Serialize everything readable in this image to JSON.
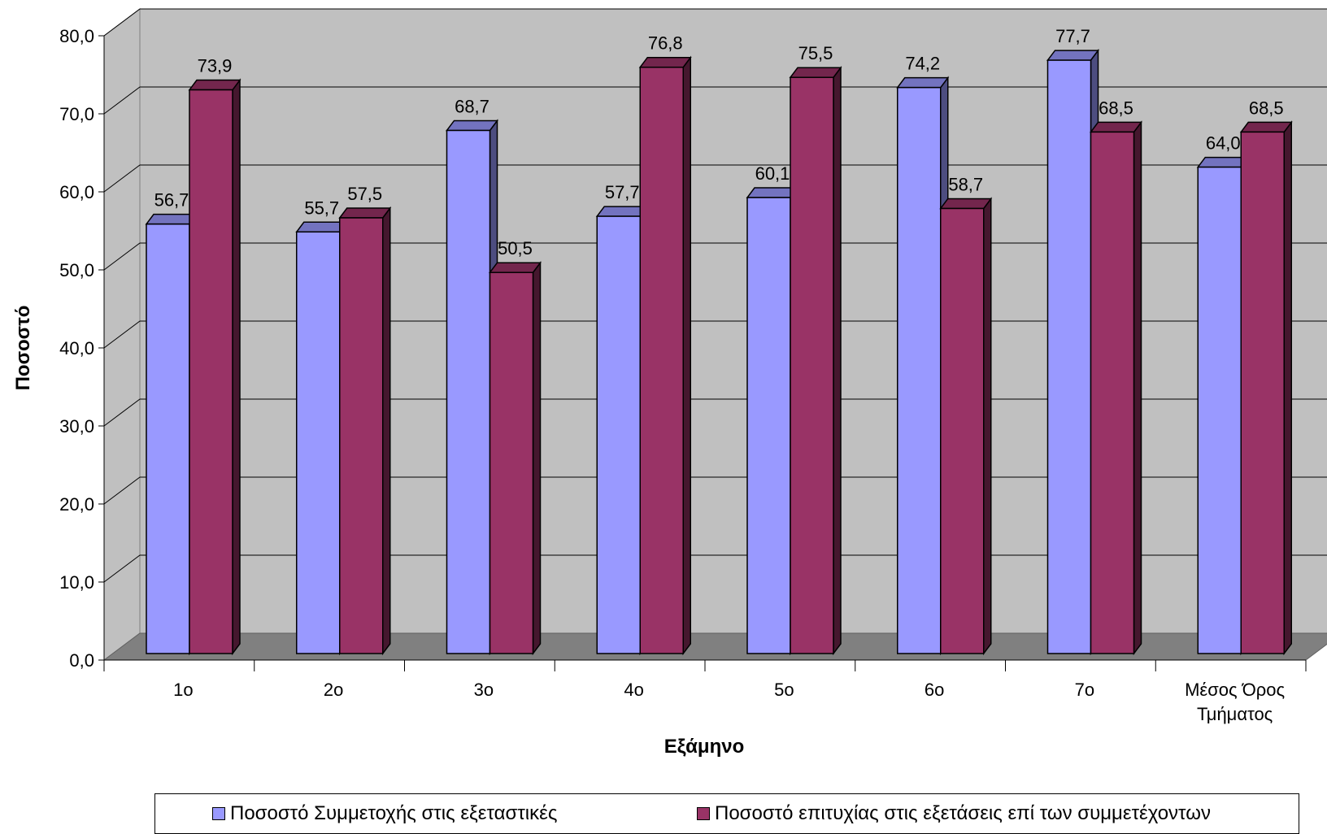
{
  "chart_data": {
    "type": "bar",
    "style": "3d-clustered-column",
    "ylabel": "Ποσοστό",
    "xlabel": "Εξάμηνο",
    "ylim": [
      0,
      80
    ],
    "yticks": [
      "0,0",
      "10,0",
      "20,0",
      "30,0",
      "40,0",
      "50,0",
      "60,0",
      "70,0",
      "80,0"
    ],
    "categories": [
      "1ο",
      "2ο",
      "3ο",
      "4ο",
      "5ο",
      "6ο",
      "7ο",
      "Μέσος Όρος Τμήματος"
    ],
    "category_lines": [
      [
        "1ο"
      ],
      [
        "2ο"
      ],
      [
        "3ο"
      ],
      [
        "4ο"
      ],
      [
        "5ο"
      ],
      [
        "6ο"
      ],
      [
        "7ο"
      ],
      [
        "Μέσος Όρος",
        "Τμήματος"
      ]
    ],
    "series": [
      {
        "name": "Ποσοστό Συμμετοχής στις εξεταστικές",
        "values": [
          56.7,
          55.7,
          68.7,
          57.7,
          60.1,
          74.2,
          77.7,
          64.0
        ],
        "labels": [
          "56,7",
          "55,7",
          "68,7",
          "57,7",
          "60,1",
          "74,2",
          "77,7",
          "64,0"
        ],
        "color": "#9999ff"
      },
      {
        "name": "Ποσοστό επιτυχίας στις εξετάσεις επί των συμμετέχοντων",
        "values": [
          73.9,
          57.5,
          50.5,
          76.8,
          75.5,
          58.7,
          68.5,
          68.5
        ],
        "labels": [
          "73,9",
          "57,5",
          "50,5",
          "76,8",
          "75,5",
          "58,7",
          "68,5",
          "68,5"
        ],
        "color": "#993366"
      }
    ],
    "grid": true,
    "legend_position": "bottom",
    "wall_color": "#c0c0c0",
    "floor_color": "#808080"
  }
}
